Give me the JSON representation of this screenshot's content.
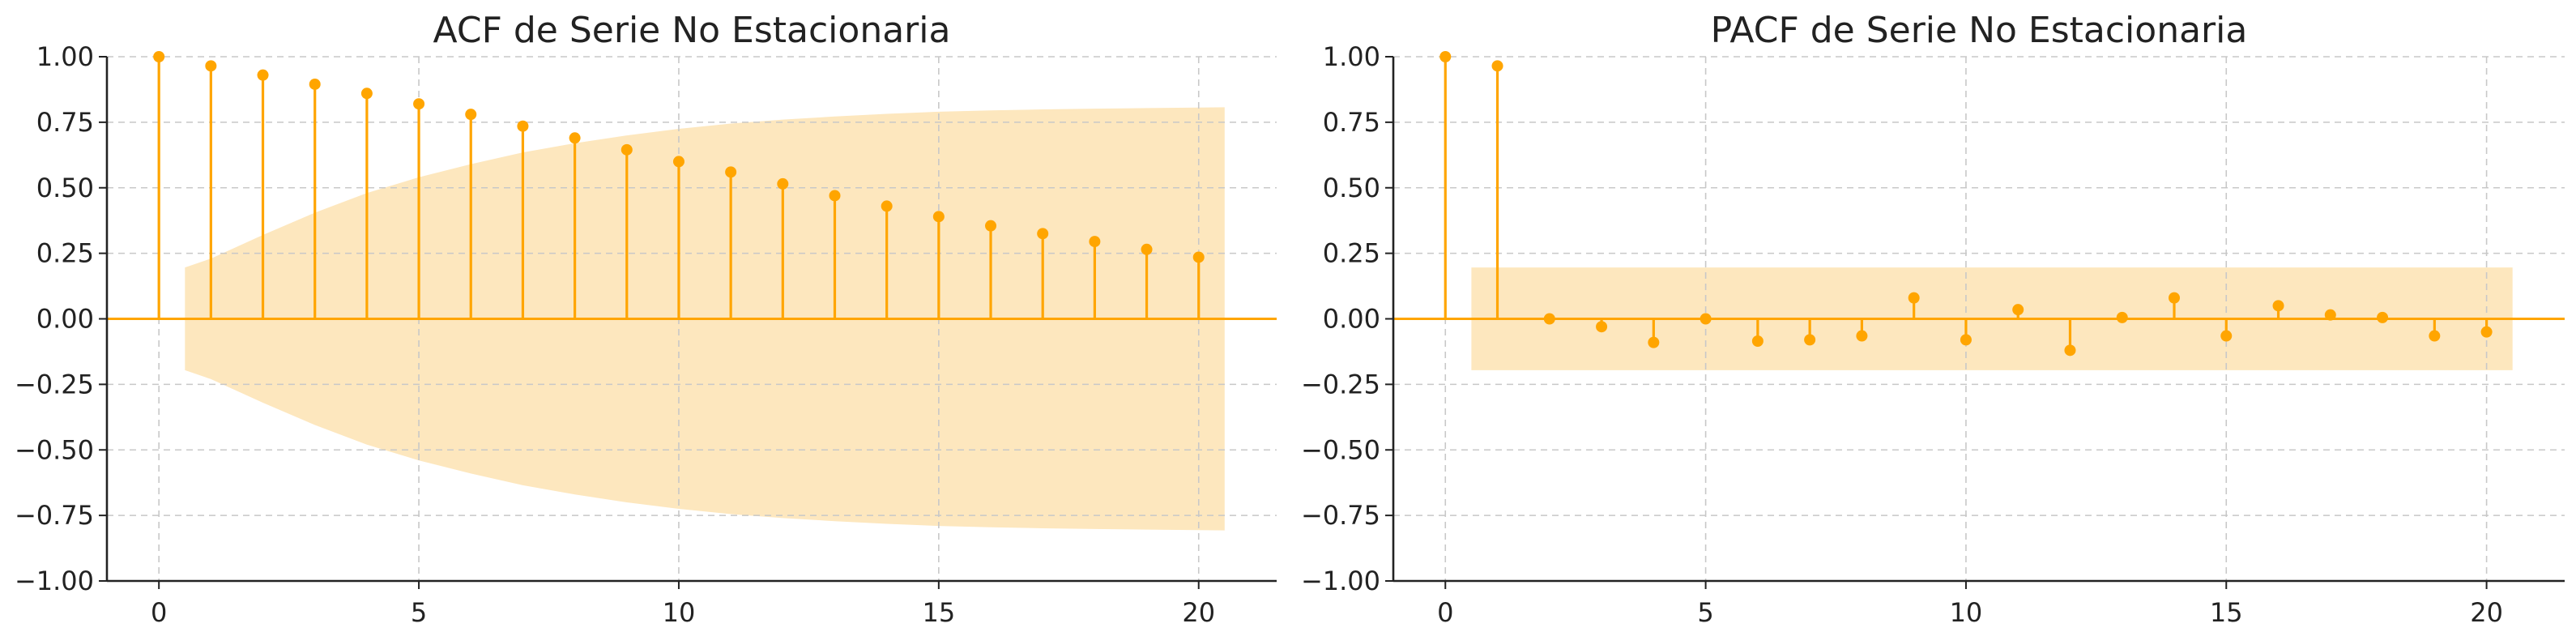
{
  "chart_data": [
    {
      "type": "stem",
      "title": "ACF de Serie No Estacionaria",
      "xlabel": "",
      "ylabel": "",
      "xlim": [
        -1,
        21.5
      ],
      "ylim": [
        -1.0,
        1.0
      ],
      "xticks": [
        0,
        5,
        10,
        15,
        20
      ],
      "yticks": [
        -1.0,
        -0.75,
        -0.5,
        -0.25,
        0.0,
        0.25,
        0.5,
        0.75,
        1.0
      ],
      "ytick_labels": [
        "−1.00",
        "−0.75",
        "−0.50",
        "−0.25",
        "0.00",
        "0.25",
        "0.50",
        "0.75",
        "1.00"
      ],
      "grid": true,
      "lags": [
        0,
        1,
        2,
        3,
        4,
        5,
        6,
        7,
        8,
        9,
        10,
        11,
        12,
        13,
        14,
        15,
        16,
        17,
        18,
        19,
        20
      ],
      "values": [
        1.0,
        0.965,
        0.93,
        0.895,
        0.86,
        0.82,
        0.78,
        0.735,
        0.69,
        0.645,
        0.6,
        0.56,
        0.515,
        0.47,
        0.43,
        0.39,
        0.355,
        0.325,
        0.295,
        0.265,
        0.235
      ],
      "confidence_band": {
        "x": [
          0.5,
          1,
          2,
          3,
          4,
          5,
          6,
          7,
          8,
          9,
          10,
          11,
          12,
          13,
          14,
          15,
          16,
          17,
          18,
          19,
          20,
          20.5
        ],
        "upper": [
          0.196,
          0.23,
          0.32,
          0.405,
          0.48,
          0.54,
          0.59,
          0.635,
          0.67,
          0.7,
          0.725,
          0.745,
          0.76,
          0.772,
          0.782,
          0.79,
          0.795,
          0.799,
          0.802,
          0.804,
          0.806,
          0.807
        ]
      }
    },
    {
      "type": "stem",
      "title": "PACF de Serie No Estacionaria",
      "xlabel": "",
      "ylabel": "",
      "xlim": [
        -1,
        21.5
      ],
      "ylim": [
        -1.0,
        1.0
      ],
      "xticks": [
        0,
        5,
        10,
        15,
        20
      ],
      "yticks": [
        -1.0,
        -0.75,
        -0.5,
        -0.25,
        0.0,
        0.25,
        0.5,
        0.75,
        1.0
      ],
      "ytick_labels": [
        "−1.00",
        "−0.75",
        "−0.50",
        "−0.25",
        "0.00",
        "0.25",
        "0.50",
        "0.75",
        "1.00"
      ],
      "grid": true,
      "lags": [
        0,
        1,
        2,
        3,
        4,
        5,
        6,
        7,
        8,
        9,
        10,
        11,
        12,
        13,
        14,
        15,
        16,
        17,
        18,
        19,
        20
      ],
      "values": [
        1.0,
        0.965,
        0.0,
        -0.03,
        -0.09,
        0.0,
        -0.085,
        -0.08,
        -0.065,
        0.08,
        -0.08,
        0.035,
        -0.12,
        0.005,
        0.08,
        -0.065,
        0.05,
        0.015,
        0.005,
        -0.065,
        -0.05
      ],
      "confidence_band": {
        "x": [
          0.5,
          20.5
        ],
        "upper": [
          0.196,
          0.196
        ]
      }
    }
  ],
  "colors": {
    "stem": "#FFA500",
    "band": "#FDE7BE",
    "zero_line": "#FFA500"
  }
}
